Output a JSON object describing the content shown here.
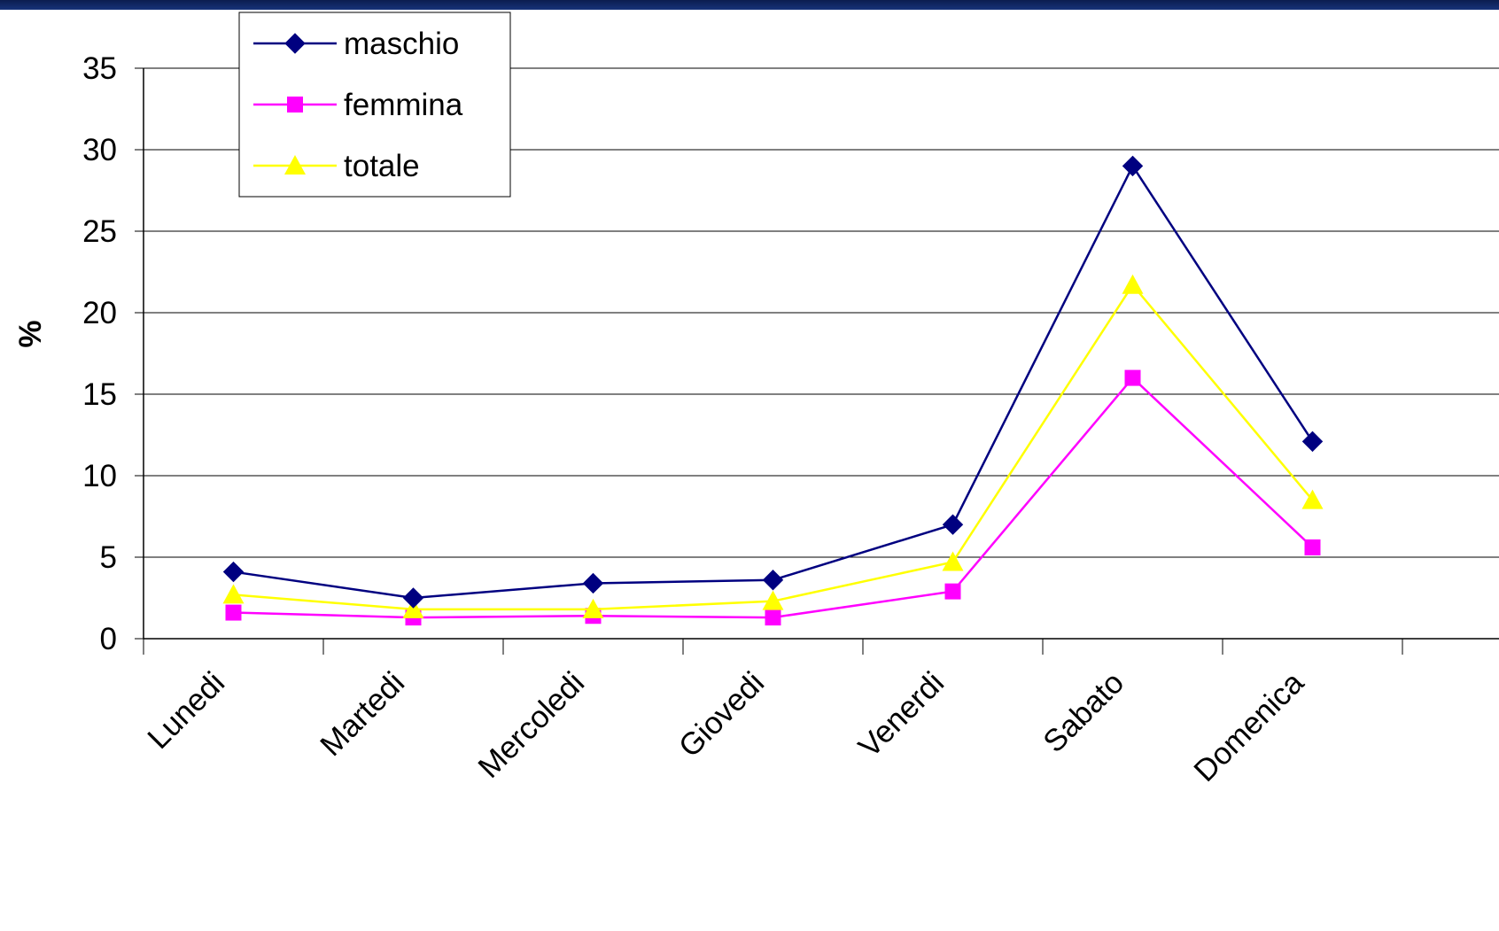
{
  "colors": {
    "top_bar": "#0b1d4f",
    "gridline": "#000000",
    "maschio": "#000080",
    "femmina": "#ff00ff",
    "totale": "#ffff00"
  },
  "chart_data": {
    "type": "line",
    "title": "",
    "xlabel": "",
    "ylabel": "%",
    "ylim": [
      0,
      35
    ],
    "yticks": [
      0,
      5,
      10,
      15,
      20,
      25,
      30,
      35
    ],
    "grid": "horizontal",
    "legend_position": "top-left",
    "categories": [
      "Lunedi",
      "Martedi",
      "Mercoledi",
      "Giovedi",
      "Venerdi",
      "Sabato",
      "Domenica"
    ],
    "series": [
      {
        "name": "maschio",
        "marker": "diamond",
        "color": "#000080",
        "values": [
          4.1,
          2.5,
          3.4,
          3.6,
          7.0,
          29.0,
          12.1
        ]
      },
      {
        "name": "femmina",
        "marker": "square",
        "color": "#ff00ff",
        "values": [
          1.6,
          1.3,
          1.4,
          1.3,
          2.9,
          16.0,
          5.6
        ]
      },
      {
        "name": "totale",
        "marker": "triangle",
        "color": "#ffff00",
        "values": [
          2.7,
          1.8,
          1.8,
          2.3,
          4.7,
          21.7,
          8.5
        ]
      }
    ]
  }
}
